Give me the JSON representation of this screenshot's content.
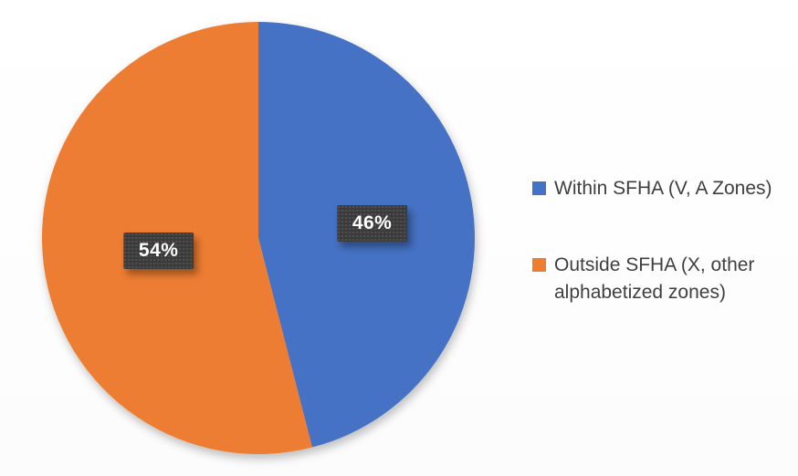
{
  "chart_data": {
    "type": "pie",
    "labels": [
      "Within SFHA (V, A Zones)",
      "Outside SFHA (X, other alphabetized zones)"
    ],
    "values": [
      46,
      54
    ],
    "data_labels": [
      "46%",
      "54%"
    ],
    "colors": [
      "#4472C4",
      "#ED7D31"
    ],
    "start_angle_deg": 0,
    "direction": "clockwise",
    "legend_position": "right",
    "grid": false
  },
  "style": {
    "data_label_bg": "#3b3b3b",
    "data_label_text": "#ffffff",
    "legend_text_color": "#3f3f3f",
    "background": "#ffffff"
  }
}
